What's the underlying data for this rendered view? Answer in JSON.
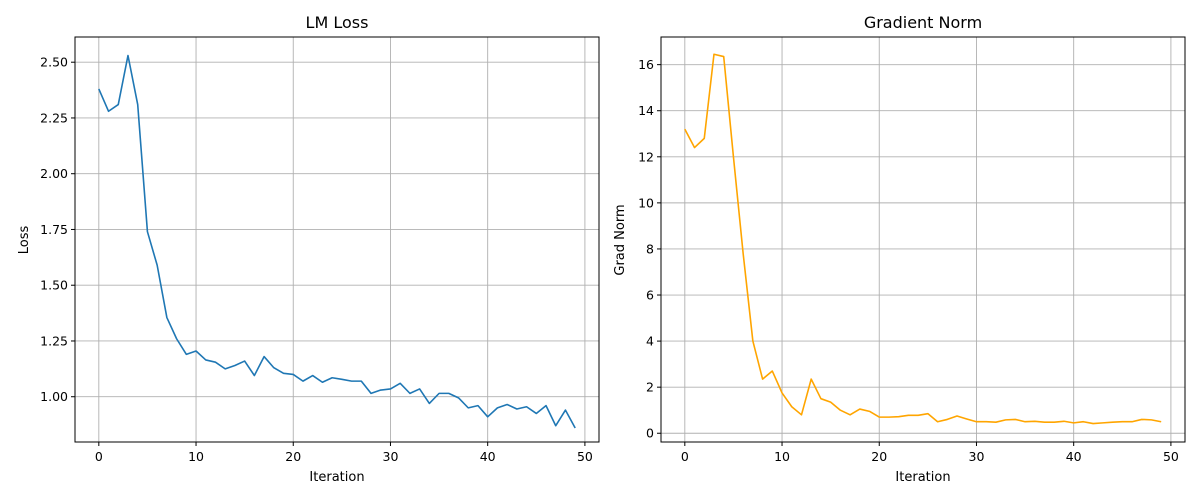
{
  "chart_data": [
    {
      "type": "line",
      "title": "LM Loss",
      "xlabel": "Iteration",
      "ylabel": "Loss",
      "xlim": [
        -2.45,
        51.45
      ],
      "ylim": [
        0.797,
        2.613
      ],
      "xticks": [
        0,
        10,
        20,
        30,
        40,
        50
      ],
      "yticks": [
        1.0,
        1.25,
        1.5,
        1.75,
        2.0,
        2.25,
        2.5
      ],
      "ytick_labels": [
        "1.00",
        "1.25",
        "1.50",
        "1.75",
        "2.00",
        "2.25",
        "2.50"
      ],
      "grid": true,
      "color": "#1f77b4",
      "series": [
        {
          "x": [
            0,
            1,
            2,
            3,
            4,
            5,
            6,
            7,
            8,
            9,
            10,
            11,
            12,
            13,
            14,
            15,
            16,
            17,
            18,
            19,
            20,
            21,
            22,
            23,
            24,
            25,
            26,
            27,
            28,
            29,
            30,
            31,
            32,
            33,
            34,
            35,
            36,
            37,
            38,
            39,
            40,
            41,
            42,
            43,
            44,
            45,
            46,
            47,
            48,
            49
          ],
          "values": [
            2.38,
            2.28,
            2.31,
            2.53,
            2.31,
            1.74,
            1.59,
            1.355,
            1.26,
            1.19,
            1.205,
            1.165,
            1.155,
            1.125,
            1.14,
            1.16,
            1.095,
            1.18,
            1.13,
            1.105,
            1.1,
            1.07,
            1.095,
            1.065,
            1.085,
            1.078,
            1.07,
            1.07,
            1.015,
            1.03,
            1.035,
            1.06,
            1.015,
            1.035,
            0.97,
            1.015,
            1.015,
            0.995,
            0.95,
            0.96,
            0.91,
            0.95,
            0.965,
            0.945,
            0.955,
            0.925,
            0.96,
            0.87,
            0.94,
            0.86
          ]
        }
      ]
    },
    {
      "type": "line",
      "title": "Gradient Norm",
      "xlabel": "Iteration",
      "ylabel": "Grad Norm",
      "xlim": [
        -2.45,
        51.45
      ],
      "ylim": [
        -0.38,
        17.2
      ],
      "xticks": [
        0,
        10,
        20,
        30,
        40,
        50
      ],
      "yticks": [
        0,
        2,
        4,
        6,
        8,
        10,
        12,
        14,
        16
      ],
      "ytick_labels": [
        "0",
        "2",
        "4",
        "6",
        "8",
        "10",
        "12",
        "14",
        "16"
      ],
      "grid": true,
      "color": "#ffa500",
      "series": [
        {
          "x": [
            0,
            1,
            2,
            3,
            4,
            5,
            6,
            7,
            8,
            9,
            10,
            11,
            12,
            13,
            14,
            15,
            16,
            17,
            18,
            19,
            20,
            21,
            22,
            23,
            24,
            25,
            26,
            27,
            28,
            29,
            30,
            31,
            32,
            33,
            34,
            35,
            36,
            37,
            38,
            39,
            40,
            41,
            42,
            43,
            44,
            45,
            46,
            47,
            48,
            49
          ],
          "values": [
            13.2,
            12.4,
            12.8,
            16.45,
            16.35,
            12.0,
            7.8,
            4.0,
            2.35,
            2.7,
            1.75,
            1.15,
            0.8,
            2.35,
            1.5,
            1.35,
            1.0,
            0.8,
            1.05,
            0.95,
            0.7,
            0.7,
            0.72,
            0.78,
            0.78,
            0.85,
            0.5,
            0.6,
            0.75,
            0.62,
            0.5,
            0.5,
            0.48,
            0.58,
            0.6,
            0.5,
            0.52,
            0.48,
            0.48,
            0.52,
            0.45,
            0.5,
            0.42,
            0.45,
            0.48,
            0.5,
            0.5,
            0.6,
            0.58,
            0.5
          ]
        }
      ]
    }
  ]
}
